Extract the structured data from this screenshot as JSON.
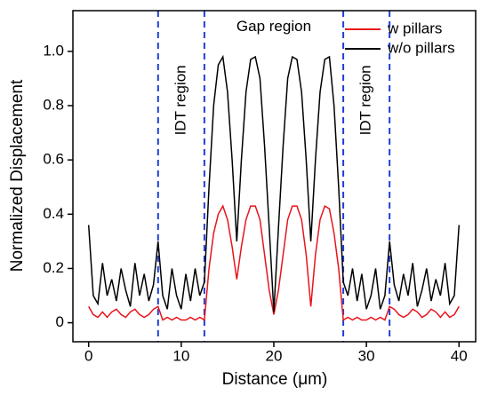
{
  "chart_data": {
    "type": "line",
    "xlabel": "Distance (μm)",
    "ylabel": "Normalized Displacement",
    "xlim": [
      -1.7,
      41.8
    ],
    "ylim": [
      -0.07,
      1.15
    ],
    "xticks": [
      0,
      10,
      20,
      30,
      40
    ],
    "yticks": [
      0,
      0.2,
      0.4,
      0.6,
      0.8,
      {
        "value": 1,
        "label": "1.0"
      }
    ],
    "legend": "upper right",
    "vlines": [
      7.5,
      12.5,
      27.5,
      32.5
    ],
    "vline_color": "#1f3fd6",
    "annotations": [
      {
        "text": "Gap region",
        "x": 20,
        "y": 1.09,
        "rotation": 0
      },
      {
        "text": "IDT region",
        "x": 10,
        "y": 0.82,
        "rotation": 90
      },
      {
        "text": "IDT region",
        "x": 30,
        "y": 0.82,
        "rotation": 90
      }
    ],
    "x": [
      0,
      0.5,
      1,
      1.5,
      2,
      2.5,
      3,
      3.5,
      4,
      4.5,
      5,
      5.5,
      6,
      6.5,
      7,
      7.5,
      8,
      8.5,
      9,
      9.5,
      10,
      10.5,
      11,
      11.5,
      12,
      12.5,
      13,
      13.5,
      14,
      14.5,
      15,
      15.5,
      16,
      16.5,
      17,
      17.5,
      18,
      18.5,
      19,
      19.5,
      20,
      20.5,
      21,
      21.5,
      22,
      22.5,
      23,
      23.5,
      24,
      24.5,
      25,
      25.5,
      26,
      26.5,
      27,
      27.5,
      28,
      28.5,
      29,
      29.5,
      30,
      30.5,
      31,
      31.5,
      32,
      32.5,
      33,
      33.5,
      34,
      34.5,
      35,
      35.5,
      36,
      36.5,
      37,
      37.5,
      38,
      38.5,
      39,
      39.5,
      40
    ],
    "series": [
      {
        "name": "w pillars",
        "color": "#e8141b",
        "values": [
          0.06,
          0.03,
          0.02,
          0.04,
          0.02,
          0.04,
          0.05,
          0.03,
          0.02,
          0.04,
          0.05,
          0.03,
          0.02,
          0.03,
          0.05,
          0.06,
          0.01,
          0.02,
          0.01,
          0.02,
          0.01,
          0.01,
          0.02,
          0.01,
          0.02,
          0.01,
          0.2,
          0.33,
          0.4,
          0.43,
          0.38,
          0.28,
          0.16,
          0.28,
          0.38,
          0.43,
          0.43,
          0.38,
          0.25,
          0.12,
          0.03,
          0.12,
          0.25,
          0.38,
          0.43,
          0.43,
          0.38,
          0.25,
          0.06,
          0.25,
          0.38,
          0.43,
          0.42,
          0.33,
          0.2,
          0.01,
          0.02,
          0.01,
          0.02,
          0.01,
          0.01,
          0.02,
          0.01,
          0.02,
          0.01,
          0.06,
          0.05,
          0.03,
          0.02,
          0.03,
          0.05,
          0.04,
          0.02,
          0.03,
          0.05,
          0.04,
          0.02,
          0.04,
          0.02,
          0.03,
          0.06
        ]
      },
      {
        "name": "w/o pillars",
        "color": "#000000",
        "values": [
          0.36,
          0.1,
          0.07,
          0.22,
          0.1,
          0.16,
          0.08,
          0.2,
          0.12,
          0.06,
          0.22,
          0.1,
          0.18,
          0.08,
          0.14,
          0.3,
          0.1,
          0.05,
          0.2,
          0.1,
          0.05,
          0.18,
          0.08,
          0.2,
          0.1,
          0.15,
          0.5,
          0.8,
          0.95,
          0.98,
          0.85,
          0.6,
          0.3,
          0.6,
          0.85,
          0.97,
          0.98,
          0.9,
          0.65,
          0.35,
          0.04,
          0.35,
          0.65,
          0.9,
          0.98,
          0.97,
          0.85,
          0.6,
          0.3,
          0.6,
          0.85,
          0.97,
          0.98,
          0.8,
          0.5,
          0.15,
          0.1,
          0.2,
          0.08,
          0.18,
          0.05,
          0.1,
          0.2,
          0.05,
          0.1,
          0.3,
          0.14,
          0.08,
          0.18,
          0.1,
          0.22,
          0.06,
          0.12,
          0.2,
          0.08,
          0.16,
          0.1,
          0.22,
          0.07,
          0.1,
          0.36
        ]
      }
    ]
  }
}
